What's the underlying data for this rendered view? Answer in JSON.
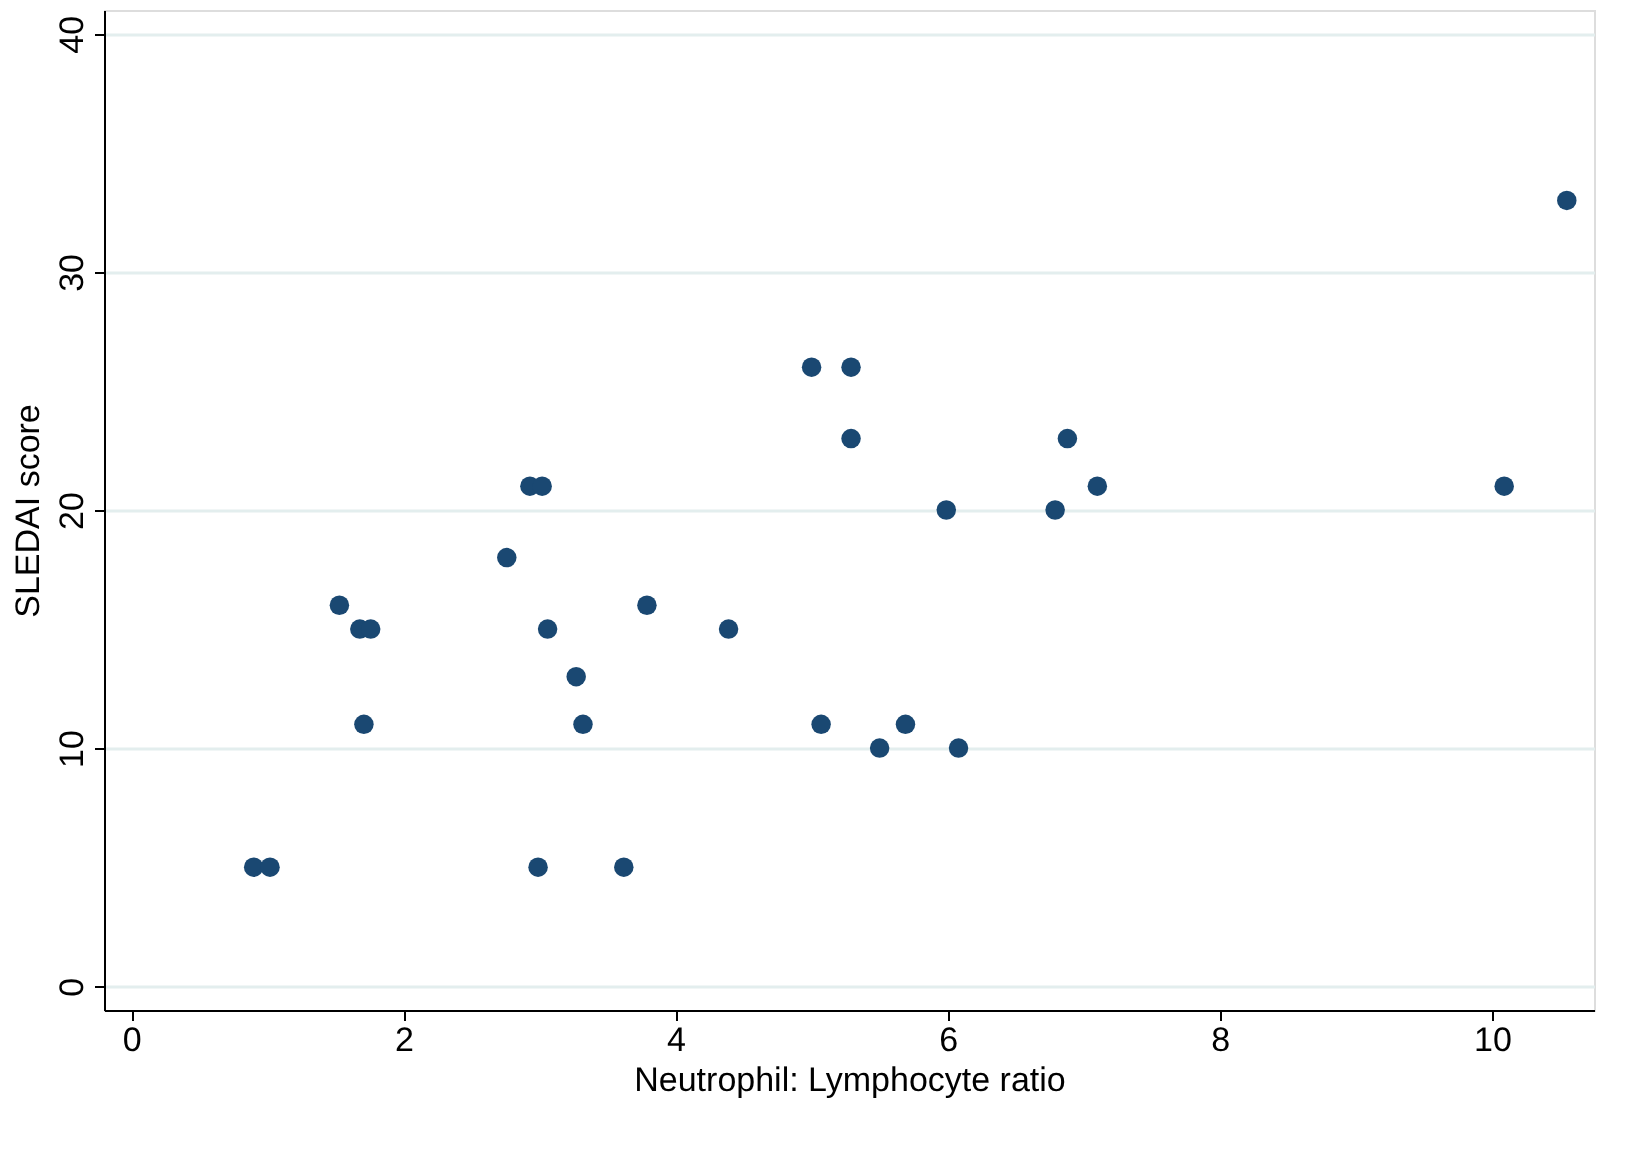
{
  "chart_data": {
    "type": "scatter",
    "xlabel": "Neutrophil: Lymphocyte ratio",
    "ylabel": "SLEDAI score",
    "x": [
      0.9,
      1.02,
      1.53,
      1.68,
      1.76,
      1.71,
      2.76,
      2.93,
      3.02,
      2.99,
      3.06,
      3.27,
      3.32,
      3.62,
      3.79,
      4.39,
      5.0,
      5.29,
      5.29,
      5.07,
      5.5,
      5.69,
      5.99,
      6.08,
      6.79,
      6.88,
      7.1,
      10.09,
      10.55
    ],
    "series": [
      {
        "color": "#1a4872",
        "values": [
          5,
          5,
          16,
          15,
          15,
          11,
          18,
          21,
          21,
          5,
          15,
          13,
          11,
          5,
          16,
          15,
          26,
          26,
          23,
          11,
          10,
          11,
          20,
          10,
          20,
          23,
          21,
          21,
          33
        ]
      }
    ],
    "xlim": [
      -0.2,
      10.75
    ],
    "ylim": [
      -1,
      41
    ],
    "xticks": [
      0,
      2,
      4,
      6,
      8,
      10
    ],
    "yticks": [
      0,
      10,
      20,
      30,
      40
    ],
    "grid": "y",
    "marker": "circle",
    "legend": false
  }
}
